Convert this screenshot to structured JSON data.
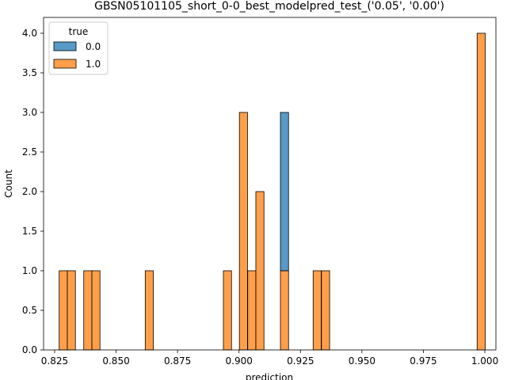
{
  "chart_data": {
    "type": "bar",
    "title": "GBSN05101105_short_0-0_best_modelpred_test_('0.05', '0.00')",
    "xlabel": "prediction",
    "ylabel": "Count",
    "xlim": [
      0.8205,
      1.0045
    ],
    "ylim": [
      0,
      4.2
    ],
    "xticks": [
      "0.825",
      "0.850",
      "0.875",
      "0.900",
      "0.925",
      "0.950",
      "0.975",
      "1.000"
    ],
    "yticks": [
      "0.0",
      "0.5",
      "1.0",
      "1.5",
      "2.0",
      "2.5",
      "3.0",
      "3.5",
      "4.0"
    ],
    "bin_width": 0.0033,
    "legend": {
      "title": "true",
      "placement": "upper left"
    },
    "series": [
      {
        "name": "0.0",
        "color": "#1f77b4",
        "bins": [
          {
            "x": 0.9185,
            "count": 2
          }
        ]
      },
      {
        "name": "1.0",
        "color": "#ff7f0e",
        "bins": [
          {
            "x": 0.8285,
            "count": 1
          },
          {
            "x": 0.8318,
            "count": 1
          },
          {
            "x": 0.8385,
            "count": 1
          },
          {
            "x": 0.8418,
            "count": 1
          },
          {
            "x": 0.8635,
            "count": 1
          },
          {
            "x": 0.8953,
            "count": 1
          },
          {
            "x": 0.9018,
            "count": 3
          },
          {
            "x": 0.9052,
            "count": 1
          },
          {
            "x": 0.9085,
            "count": 2
          },
          {
            "x": 0.9185,
            "count": 1
          },
          {
            "x": 0.9318,
            "count": 1
          },
          {
            "x": 0.9352,
            "count": 1
          },
          {
            "x": 0.9985,
            "count": 4
          }
        ]
      }
    ]
  }
}
